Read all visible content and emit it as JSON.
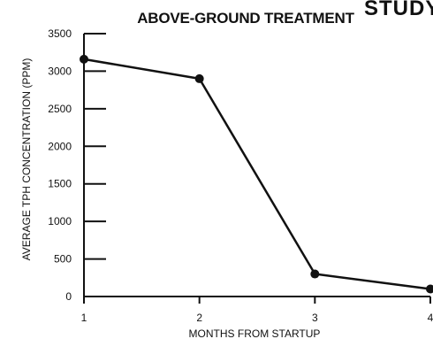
{
  "chart_data": {
    "type": "line",
    "title": "ABOVE-GROUND TREATMENT",
    "xlabel": "MONTHS FROM STARTUP",
    "ylabel": "AVERAGE TPH CONCENTRATION (PPM)",
    "x": [
      1,
      2,
      3,
      4
    ],
    "xlim": [
      1,
      4
    ],
    "ylim": [
      0,
      3500
    ],
    "x_ticks": [
      "1",
      "2",
      "3",
      "4"
    ],
    "y_ticks": [
      "0",
      "500",
      "1000",
      "1500",
      "2000",
      "2500",
      "3000",
      "3500"
    ],
    "series": [
      {
        "values": [
          3160,
          2900,
          300,
          100
        ]
      }
    ],
    "grid": false,
    "color": "#111111"
  }
}
